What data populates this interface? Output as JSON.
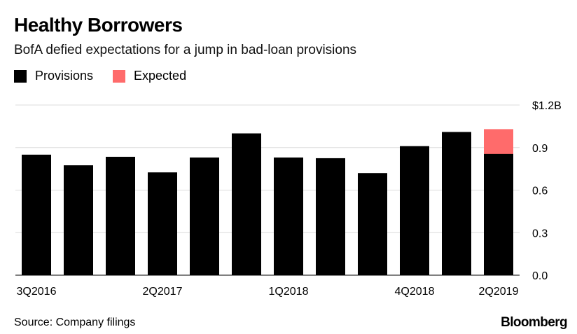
{
  "header": {
    "title": "Healthy Borrowers",
    "subtitle": "BofA defied expectations for a jump in bad-loan provisions"
  },
  "legend": {
    "items": [
      {
        "label": "Provisions",
        "color": "#000000"
      },
      {
        "label": "Expected",
        "color": "#ff6b6b"
      }
    ]
  },
  "footer": {
    "source": "Source: Company filings",
    "brand": "Bloomberg"
  },
  "chart_data": {
    "type": "bar",
    "categories": [
      "3Q2016",
      "4Q2016",
      "1Q2017",
      "2Q2017",
      "3Q2017",
      "4Q2017",
      "1Q2018",
      "2Q2018",
      "3Q2018",
      "4Q2018",
      "1Q2019",
      "2Q2019"
    ],
    "x_tick_labels": [
      "3Q2016",
      "2Q2017",
      "1Q2018",
      "4Q2018",
      "2Q2019"
    ],
    "x_tick_label_categories": [
      "3Q2016",
      "2Q2017",
      "1Q2018",
      "4Q2018",
      "2Q2019"
    ],
    "series": [
      {
        "name": "Provisions",
        "color": "#000000",
        "values": [
          0.85,
          0.775,
          0.835,
          0.725,
          0.83,
          1.0,
          0.83,
          0.825,
          0.72,
          0.91,
          1.01,
          0.855
        ]
      },
      {
        "name": "Expected",
        "color": "#ff6b6b",
        "values": [
          null,
          null,
          null,
          null,
          null,
          null,
          null,
          null,
          null,
          null,
          null,
          1.03
        ]
      }
    ],
    "y_ticks": [
      0.0,
      0.3,
      0.6,
      0.9,
      1.2
    ],
    "y_tick_labels": [
      "0.0",
      "0.3",
      "0.6",
      "0.9",
      "$1.2B"
    ],
    "ylim": [
      0,
      1.2
    ],
    "grid": true,
    "axis_position": "right"
  }
}
